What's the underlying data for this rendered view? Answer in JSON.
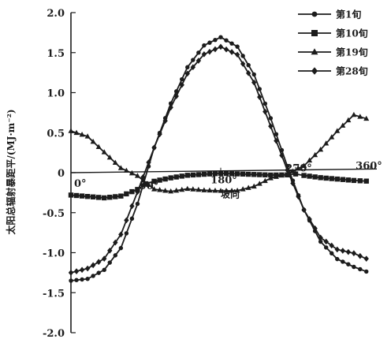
{
  "chart_data": {
    "type": "line",
    "ylabel": "太阳总辐射暴距平/(MJ·m⁻²)",
    "xlabel": "坡向",
    "x_tick_labels": [
      {
        "x": 0,
        "label": "0°"
      },
      {
        "x": 90,
        "label": "90°"
      },
      {
        "x": 180,
        "label": "180°"
      },
      {
        "x": 270,
        "label": "270°"
      },
      {
        "x": 360,
        "label": "360°"
      }
    ],
    "y_tick_labels": [
      {
        "y": 2.0,
        "label": "2.0"
      },
      {
        "y": 1.5,
        "label": "1.5"
      },
      {
        "y": 1.0,
        "label": "1.0"
      },
      {
        "y": 0.5,
        "label": "0.5"
      },
      {
        "y": 0,
        "label": "0"
      },
      {
        "y": -0.5,
        "label": "-0.5"
      },
      {
        "y": -1.0,
        "label": "-1.0"
      },
      {
        "y": -1.5,
        "label": "-1.5"
      },
      {
        "y": -2.0,
        "label": "-2.0"
      }
    ],
    "ylim": [
      -2.0,
      2.0
    ],
    "xlim": [
      0,
      360
    ],
    "grid": false,
    "legend_position": "top-right",
    "series": [
      {
        "name": "第1旬",
        "marker": "circle",
        "x": [
          0,
          20,
          40,
          60,
          80,
          100,
          120,
          140,
          160,
          180,
          200,
          220,
          240,
          260,
          280,
          300,
          320,
          340,
          355
        ],
        "values": [
          -1.35,
          -1.33,
          -1.22,
          -0.95,
          -0.4,
          0.3,
          0.85,
          1.3,
          1.57,
          1.67,
          1.55,
          1.2,
          0.65,
          0.05,
          -0.5,
          -0.9,
          -1.12,
          -1.22,
          -1.28
        ]
      },
      {
        "name": "第10旬",
        "marker": "square",
        "x": [
          0,
          20,
          40,
          60,
          80,
          90,
          100,
          120,
          140,
          160,
          180,
          200,
          220,
          240,
          260,
          270,
          280,
          300,
          320,
          340,
          355
        ],
        "values": [
          -0.28,
          -0.3,
          -0.32,
          -0.3,
          -0.22,
          -0.15,
          -0.12,
          -0.08,
          -0.05,
          -0.04,
          -0.03,
          -0.04,
          -0.05,
          -0.06,
          -0.06,
          -0.05,
          -0.07,
          -0.1,
          -0.12,
          -0.14,
          -0.15
        ]
      },
      {
        "name": "第19旬",
        "marker": "triangle",
        "x": [
          0,
          20,
          40,
          60,
          80,
          100,
          120,
          140,
          160,
          180,
          200,
          220,
          240,
          260,
          280,
          300,
          320,
          340,
          355
        ],
        "values": [
          0.52,
          0.45,
          0.25,
          0.05,
          -0.05,
          -0.22,
          -0.25,
          -0.22,
          -0.24,
          -0.25,
          -0.25,
          -0.2,
          -0.1,
          -0.05,
          0.05,
          0.25,
          0.48,
          0.68,
          0.63
        ]
      },
      {
        "name": "第28旬",
        "marker": "diamond",
        "x": [
          0,
          20,
          40,
          60,
          80,
          100,
          120,
          140,
          160,
          180,
          200,
          220,
          240,
          260,
          280,
          300,
          320,
          340,
          355
        ],
        "values": [
          -1.25,
          -1.2,
          -1.08,
          -0.78,
          -0.25,
          0.3,
          0.8,
          1.22,
          1.46,
          1.55,
          1.45,
          1.1,
          0.55,
          0.0,
          -0.5,
          -0.85,
          -1.0,
          -1.05,
          -1.12
        ]
      }
    ]
  }
}
